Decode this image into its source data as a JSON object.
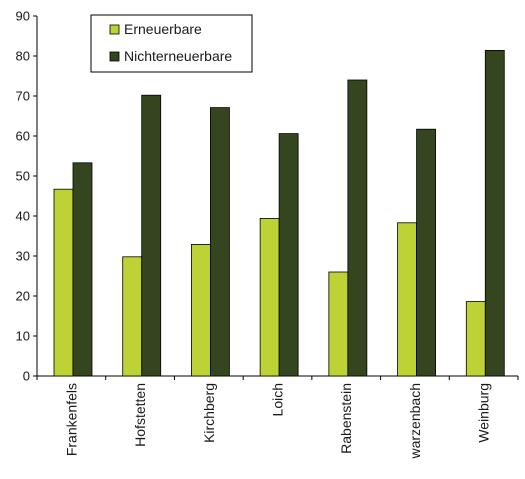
{
  "chart_data": {
    "type": "bar",
    "categories": [
      "Frankenfels",
      "Hofstetten",
      "Kirchberg",
      "Loich",
      "Rabenstein",
      "warzenbach",
      "Weinburg"
    ],
    "series": [
      {
        "name": "Erneuerbare",
        "color": "#bcd235",
        "values": [
          46.7,
          29.8,
          32.9,
          39.4,
          26.0,
          38.3,
          18.6
        ]
      },
      {
        "name": "Nichterneuerbare",
        "color": "#344520",
        "values": [
          53.3,
          70.2,
          67.1,
          60.6,
          74.0,
          61.7,
          81.4
        ]
      }
    ],
    "ylim": [
      0,
      90
    ],
    "yticks": [
      0,
      10,
      20,
      30,
      40,
      50,
      60,
      70,
      80,
      90
    ],
    "legend_position": "top-left",
    "grid": false
  }
}
